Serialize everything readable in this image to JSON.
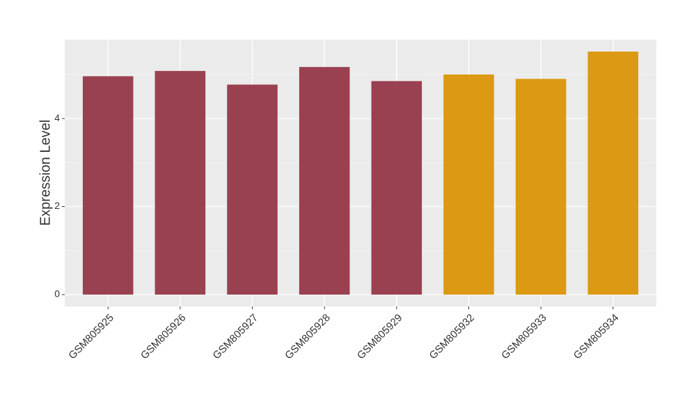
{
  "chart_data": {
    "type": "bar",
    "y_label": "Expression Level",
    "categories": [
      "GSM805925",
      "GSM805926",
      "GSM805927",
      "GSM805928",
      "GSM805929",
      "GSM805932",
      "GSM805933",
      "GSM805934"
    ],
    "values": [
      4.96,
      5.08,
      4.77,
      5.17,
      4.85,
      5.0,
      4.9,
      5.52
    ],
    "colors": [
      "#994150",
      "#994150",
      "#994150",
      "#994150",
      "#994150",
      "#dc9913",
      "#dc9913",
      "#dc9913"
    ],
    "ylim": [
      -0.27,
      5.79
    ],
    "yticks": [
      0,
      2,
      4
    ],
    "minor_yticks": [
      1,
      3,
      5
    ],
    "grid": true
  }
}
